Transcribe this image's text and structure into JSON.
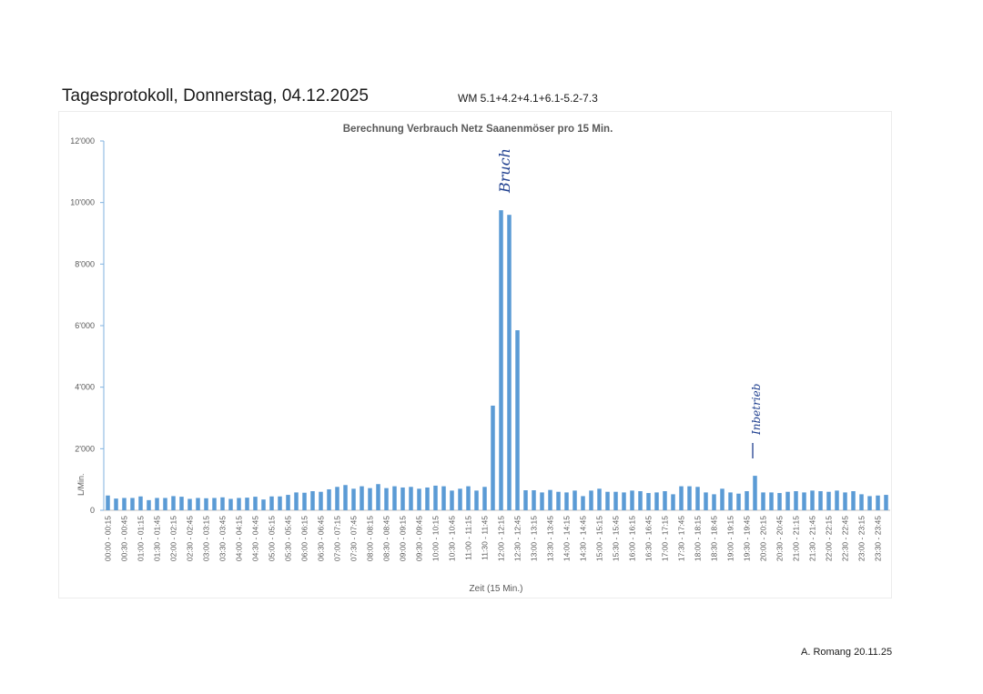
{
  "document": {
    "title": "Tagesprotokoll, Donnerstag, 04.12.2025",
    "subtitle": "WM 5.1+4.2+4.1+6.1-5.2-7.3",
    "author_date": "A. Romang  20.11.25"
  },
  "annotations": {
    "spike_note": "Bruch",
    "later_note": "Inbetrieb"
  },
  "chart_data": {
    "type": "bar",
    "title": "Berechnung Verbrauch Netz Saanenmöser pro 15 Min.",
    "xlabel": "Zeit (15 Min.)",
    "ylabel": "L/Min.",
    "ylim": [
      0,
      12000
    ],
    "yticks": [
      0,
      2000,
      4000,
      6000,
      8000,
      10000,
      12000
    ],
    "ytick_labels": [
      "0",
      "2'000",
      "4'000",
      "6'000",
      "8'000",
      "10'000",
      "12'000"
    ],
    "bar_color": "#5b9bd5",
    "grid": false,
    "categories": [
      "00:00 - 00:15",
      "00:15 - 00:30",
      "00:30 - 00:45",
      "00:45 - 01:00",
      "01:00 - 01:15",
      "01:15 - 01:30",
      "01:30 - 01:45",
      "01:45 - 02:00",
      "02:00 - 02:15",
      "02:15 - 02:30",
      "02:30 - 02:45",
      "02:45 - 03:00",
      "03:00 - 03:15",
      "03:15 - 03:30",
      "03:30 - 03:45",
      "03:45 - 04:00",
      "04:00 - 04:15",
      "04:15 - 04:30",
      "04:30 - 04:45",
      "04:45 - 05:00",
      "05:00 - 05:15",
      "05:15 - 05:30",
      "05:30 - 05:45",
      "05:45 - 06:00",
      "06:00 - 06:15",
      "06:15 - 06:30",
      "06:30 - 06:45",
      "06:45 - 07:00",
      "07:00 - 07:15",
      "07:15 - 07:30",
      "07:30 - 07:45",
      "07:45 - 08:00",
      "08:00 - 08:15",
      "08:15 - 08:30",
      "08:30 - 08:45",
      "08:45 - 09:00",
      "09:00 - 09:15",
      "09:15 - 09:30",
      "09:30 - 09:45",
      "09:45 - 10:00",
      "10:00 - 10:15",
      "10:15 - 10:30",
      "10:30 - 10:45",
      "10:45 - 11:00",
      "11:00 - 11:15",
      "11:15 - 11:30",
      "11:30 - 11:45",
      "11:45 - 12:00",
      "12:00 - 12:15",
      "12:15 - 12:30",
      "12:30 - 12:45",
      "12:45 - 13:00",
      "13:00 - 13:15",
      "13:15 - 13:30",
      "13:30 - 13:45",
      "13:45 - 14:00",
      "14:00 - 14:15",
      "14:15 - 14:30",
      "14:30 - 14:45",
      "14:45 - 15:00",
      "15:00 - 15:15",
      "15:15 - 15:30",
      "15:30 - 15:45",
      "15:45 - 16:00",
      "16:00 - 16:15",
      "16:15 - 16:30",
      "16:30 - 16:45",
      "16:45 - 17:00",
      "17:00 - 17:15",
      "17:15 - 17:30",
      "17:30 - 17:45",
      "17:45 - 18:00",
      "18:00 - 18:15",
      "18:15 - 18:30",
      "18:30 - 18:45",
      "18:45 - 19:00",
      "19:00 - 19:15",
      "19:15 - 19:30",
      "19:30 - 19:45",
      "19:45 - 20:00",
      "20:00 - 20:15",
      "20:15 - 20:30",
      "20:30 - 20:45",
      "20:45 - 21:00",
      "21:00 - 21:15",
      "21:15 - 21:30",
      "21:30 - 21:45",
      "21:45 - 22:00",
      "22:00 - 22:15",
      "22:15 - 22:30",
      "22:30 - 22:45",
      "22:45 - 23:00",
      "23:00 - 23:15",
      "23:15 - 23:30",
      "23:30 - 23:45",
      "23:45 - 24:00"
    ],
    "xtick_labels": [
      "00:00 - 00:15",
      "00:30 - 00:45",
      "01:00 - 01:15",
      "01:30 - 01:45",
      "02:00 - 02:15",
      "02:30 - 02:45",
      "03:00 - 03:15",
      "03:30 - 03:45",
      "04:00 - 04:15",
      "04:30 - 04:45",
      "05:00 - 05:15",
      "05:30 - 05:45",
      "06:00 - 06:15",
      "06:30 - 06:45",
      "07:00 - 07:15",
      "07:30 - 07:45",
      "08:00 - 08:15",
      "08:30 - 08:45",
      "09:00 - 09:15",
      "09:30 - 09:45",
      "10:00 - 10:15",
      "10:30 - 10:45",
      "11:00 - 11:15",
      "11:30 - 11:45",
      "12:00 - 12:15",
      "12:30 - 12:45",
      "13:00 - 13:15",
      "13:30 - 13:45",
      "14:00 - 14:15",
      "14:30 - 14:45",
      "15:00 - 15:15",
      "15:30 - 15:45",
      "16:00 - 16:15",
      "16:30 - 16:45",
      "17:00 - 17:15",
      "17:30 - 17:45",
      "18:00 - 18:15",
      "18:30 - 18:45",
      "19:00 - 19:15",
      "19:30 - 19:45",
      "20:00 - 20:15",
      "20:30 - 20:45",
      "21:00 - 21:15",
      "21:30 - 21:45",
      "22:00 - 22:15",
      "22:30 - 22:45",
      "23:00 - 23:15",
      "23:30 - 23:45"
    ],
    "values": [
      480,
      380,
      400,
      400,
      450,
      330,
      400,
      400,
      460,
      440,
      370,
      400,
      390,
      400,
      420,
      370,
      400,
      410,
      440,
      350,
      450,
      450,
      500,
      580,
      570,
      620,
      600,
      680,
      760,
      820,
      700,
      780,
      720,
      850,
      720,
      780,
      740,
      760,
      700,
      740,
      800,
      780,
      640,
      700,
      780,
      640,
      760,
      3400,
      9750,
      9600,
      5850,
      650,
      650,
      580,
      660,
      600,
      580,
      640,
      460,
      640,
      700,
      600,
      600,
      580,
      640,
      620,
      560,
      580,
      620,
      520,
      780,
      780,
      760,
      580,
      520,
      700,
      580,
      540,
      620,
      1120,
      580,
      580,
      560,
      600,
      620,
      580,
      640,
      620,
      600,
      640,
      580,
      620,
      520,
      460,
      480,
      500
    ]
  }
}
